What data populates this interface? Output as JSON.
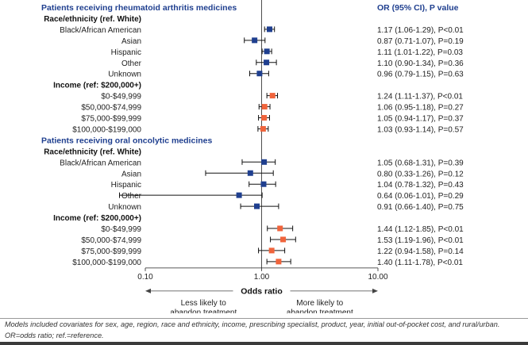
{
  "chart_data": {
    "type": "forest",
    "scale": "log",
    "xlim": [
      0.1,
      10
    ],
    "ticks": [
      "0.10",
      "1.00",
      "10.00"
    ],
    "tick_values": [
      0.1,
      1,
      10
    ],
    "xlabel": "Odds ratio",
    "left_label": "Less likely to abandon treatment",
    "left_lines": [
      "Less likely to",
      "abandon treatment"
    ],
    "right_label": "More likely to abandon treatment",
    "right_lines": [
      "More likely to",
      "abandon treatment"
    ],
    "result_header": "OR (95% CI), P value",
    "colors": {
      "race": "#1f3f8f",
      "income": "#f0643c",
      "header": "#1f3f8f",
      "ci": "#111111"
    },
    "rows": [
      {
        "kind": "section",
        "label": "Patients receiving rheumatoid arthritis medicines"
      },
      {
        "kind": "group",
        "label": "Race/ethnicity (ref. White)"
      },
      {
        "kind": "data",
        "label": "Black/African American",
        "or": 1.17,
        "lo": 1.06,
        "hi": 1.29,
        "text": "1.17 (1.06-1.29),  P<0.01",
        "marker": "race"
      },
      {
        "kind": "data",
        "label": "Asian",
        "or": 0.87,
        "lo": 0.71,
        "hi": 1.07,
        "text": "0.87 (0.71-1.07),  P=0.19",
        "marker": "race"
      },
      {
        "kind": "data",
        "label": "Hispanic",
        "or": 1.11,
        "lo": 1.01,
        "hi": 1.22,
        "text": "1.11 (1.01-1.22),  P=0.03",
        "marker": "race"
      },
      {
        "kind": "data",
        "label": "Other",
        "or": 1.1,
        "lo": 0.9,
        "hi": 1.34,
        "text": "1.10 (0.90-1.34),  P=0.36",
        "marker": "race"
      },
      {
        "kind": "data",
        "label": "Unknown",
        "or": 0.96,
        "lo": 0.79,
        "hi": 1.15,
        "text": "0.96 (0.79-1.15),  P=0.63",
        "marker": "race"
      },
      {
        "kind": "group",
        "label": "Income (ref: $200,000+)"
      },
      {
        "kind": "data",
        "label": "$0-$49,999",
        "or": 1.24,
        "lo": 1.11,
        "hi": 1.37,
        "text": "1.24 (1.11-1.37),  P<0.01",
        "marker": "income"
      },
      {
        "kind": "data",
        "label": "$50,000-$74,999",
        "or": 1.06,
        "lo": 0.95,
        "hi": 1.18,
        "text": "1.06 (0.95-1.18),  P=0.27",
        "marker": "income"
      },
      {
        "kind": "data",
        "label": "$75,000-$99,999",
        "or": 1.05,
        "lo": 0.94,
        "hi": 1.17,
        "text": "1.05 (0.94-1.17),  P=0.37",
        "marker": "income"
      },
      {
        "kind": "data",
        "label": "$100,000-$199,000",
        "or": 1.03,
        "lo": 0.93,
        "hi": 1.14,
        "text": "1.03 (0.93-1.14),  P=0.57",
        "marker": "income"
      },
      {
        "kind": "section",
        "label": "Patients receiving oral oncolytic medicines"
      },
      {
        "kind": "group",
        "label": "Race/ethnicity (ref. White)"
      },
      {
        "kind": "data",
        "label": "Black/African American",
        "or": 1.05,
        "lo": 0.68,
        "hi": 1.31,
        "text": "1.05 (0.68-1.31),  P=0.39",
        "marker": "race"
      },
      {
        "kind": "data",
        "label": "Asian",
        "or": 0.8,
        "lo": 0.33,
        "hi": 1.26,
        "text": "0.80 (0.33-1.26),  P=0.12",
        "marker": "race"
      },
      {
        "kind": "data",
        "label": "Hispanic",
        "or": 1.04,
        "lo": 0.78,
        "hi": 1.32,
        "text": "1.04 (0.78-1.32),  P=0.43",
        "marker": "race"
      },
      {
        "kind": "data",
        "label": "Other",
        "or": 0.64,
        "lo": 0.06,
        "hi": 1.01,
        "text": "0.64 (0.06-1.01),  P=0.29",
        "marker": "race"
      },
      {
        "kind": "data",
        "label": "Unknown",
        "or": 0.91,
        "lo": 0.66,
        "hi": 1.4,
        "text": "0.91 (0.66-1.40),  P=0.75",
        "marker": "race"
      },
      {
        "kind": "group",
        "label": "Income (ref: $200,000+)"
      },
      {
        "kind": "data",
        "label": "$0-$49,999",
        "or": 1.44,
        "lo": 1.12,
        "hi": 1.85,
        "text": "1.44 (1.12-1.85),  P<0.01",
        "marker": "income"
      },
      {
        "kind": "data",
        "label": "$50,000-$74,999",
        "or": 1.53,
        "lo": 1.19,
        "hi": 1.96,
        "text": "1.53 (1.19-1.96),  P<0.01",
        "marker": "income"
      },
      {
        "kind": "data",
        "label": "$75,000-$99,999",
        "or": 1.22,
        "lo": 0.94,
        "hi": 1.58,
        "text": "1.22 (0.94-1.58),  P=0.14",
        "marker": "income"
      },
      {
        "kind": "data",
        "label": "$100,000-$199,000",
        "or": 1.4,
        "lo": 1.11,
        "hi": 1.78,
        "text": "1.40 (1.11-1.78),  P<0.01",
        "marker": "income"
      }
    ]
  },
  "footnote": {
    "line1": "Models included covariates for sex, age, region, race and ethnicity, income, prescribing specialist, product, year, initial out-of-pocket cost, and rural/urban.",
    "line2": "OR=odds ratio; ref.=reference."
  },
  "colors": {
    "bottom_bar": "#3a3a3a",
    "rule": "#9a9a9a"
  }
}
